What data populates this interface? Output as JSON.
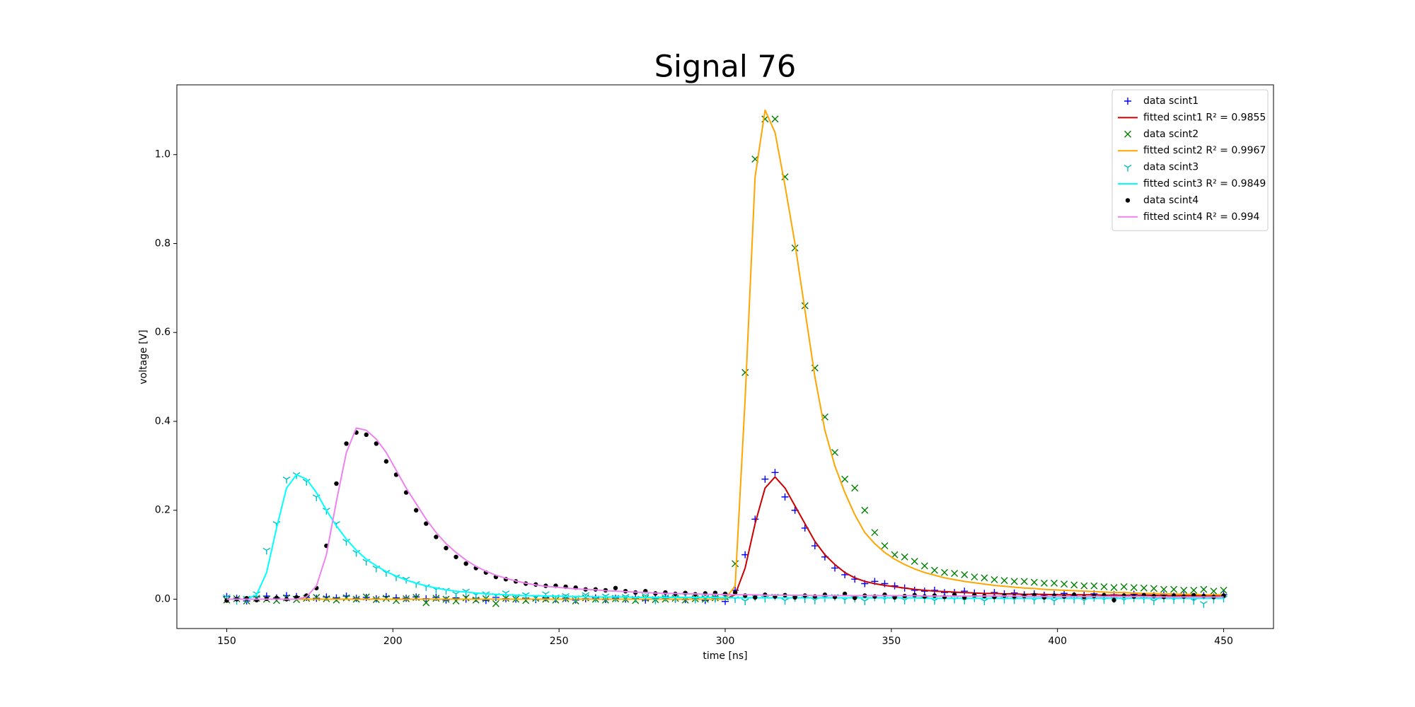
{
  "chart_data": {
    "type": "scatter",
    "title": "Signal 76",
    "x_label": "time [ns]",
    "y_label": "voltage [V]",
    "xlim": [
      135,
      465
    ],
    "ylim": [
      -0.066,
      1.157
    ],
    "xticks": [
      150,
      200,
      250,
      300,
      350,
      400,
      450
    ],
    "yticks": [
      {
        "value": 0,
        "label": "0.0"
      },
      0.2,
      0.4,
      0.6,
      0.8,
      {
        "value": 1,
        "label": "1.0"
      }
    ],
    "legend": "upper right",
    "x": [
      150,
      153,
      156,
      159,
      162,
      165,
      168,
      171,
      174,
      177,
      180,
      183,
      186,
      189,
      192,
      195,
      198,
      201,
      204,
      207,
      210,
      213,
      216,
      219,
      222,
      225,
      228,
      231,
      234,
      237,
      240,
      243,
      246,
      249,
      252,
      255,
      258,
      261,
      264,
      267,
      270,
      273,
      276,
      279,
      282,
      285,
      288,
      291,
      294,
      297,
      300,
      303,
      306,
      309,
      312,
      315,
      318,
      321,
      324,
      327,
      330,
      333,
      336,
      339,
      342,
      345,
      348,
      351,
      354,
      357,
      360,
      363,
      366,
      369,
      372,
      375,
      378,
      381,
      384,
      387,
      390,
      393,
      396,
      399,
      402,
      405,
      408,
      411,
      414,
      417,
      420,
      423,
      426,
      429,
      432,
      435,
      438,
      441,
      444,
      447,
      450
    ],
    "series": [
      {
        "name": "data scint1",
        "kind": "scatter",
        "marker": "plus",
        "color": "#0000ff",
        "values": [
          0.006,
          0.002,
          -0.004,
          0.005,
          0.007,
          0.003,
          0.008,
          0.006,
          0.004,
          0.002,
          0.005,
          0.003,
          0.007,
          0.002,
          0.004,
          0.001,
          0.006,
          0.003,
          0.002,
          0.005,
          0.001,
          0.004,
          -0.002,
          0.003,
          0.0,
          0.002,
          -0.003,
          0.004,
          0.001,
          0.0,
          0.002,
          -0.001,
          0.003,
          0.0,
          0.002,
          -0.002,
          0.001,
          0.003,
          -0.001,
          0.002,
          0.0,
          0.002,
          -0.002,
          0.001,
          0.003,
          0.0,
          -0.001,
          0.002,
          -0.003,
          0.001,
          -0.005,
          0.02,
          0.1,
          0.18,
          0.27,
          0.285,
          0.23,
          0.2,
          0.16,
          0.12,
          0.095,
          0.07,
          0.055,
          0.045,
          0.035,
          0.04,
          0.035,
          0.03,
          0.025,
          0.02,
          0.018,
          0.02,
          0.015,
          0.015,
          0.018,
          0.014,
          0.013,
          0.015,
          0.012,
          0.014,
          0.01,
          0.012,
          0.009,
          0.011,
          0.013,
          0.008,
          0.01,
          0.012,
          0.007,
          0.01,
          0.009,
          0.011,
          0.006,
          0.008,
          0.01,
          0.007,
          0.009,
          0.006,
          0.008,
          0.005,
          0.01
        ]
      },
      {
        "name": "fitted scint1 R² = 0.9855",
        "kind": "line",
        "color": "#cc0000",
        "values": [
          0,
          0,
          0,
          0,
          0,
          0,
          0,
          0,
          0,
          0,
          0,
          0,
          0,
          0,
          0,
          0,
          0,
          0,
          0,
          0,
          0,
          0,
          0,
          0,
          0,
          0,
          0,
          0,
          0,
          0,
          0,
          0,
          0,
          0,
          0,
          0,
          0,
          0,
          0,
          0,
          0,
          0,
          0,
          0,
          0,
          0,
          0,
          0,
          0,
          0,
          0,
          0.01,
          0.07,
          0.17,
          0.25,
          0.275,
          0.25,
          0.21,
          0.17,
          0.13,
          0.1,
          0.078,
          0.06,
          0.048,
          0.04,
          0.035,
          0.031,
          0.028,
          0.025,
          0.022,
          0.02,
          0.018,
          0.017,
          0.016,
          0.015,
          0.014,
          0.013,
          0.013,
          0.012,
          0.012,
          0.011,
          0.011,
          0.011,
          0.01,
          0.01,
          0.01,
          0.01,
          0.01,
          0.009,
          0.009,
          0.009,
          0.009,
          0.009,
          0.009,
          0.008,
          0.008,
          0.008,
          0.008,
          0.008,
          0.008,
          0.008
        ]
      },
      {
        "name": "data scint2",
        "kind": "scatter",
        "marker": "x",
        "color": "#008000",
        "values": [
          -0.002,
          0.001,
          -0.004,
          0.002,
          0.0,
          -0.003,
          0.003,
          -0.001,
          0.002,
          0.004,
          0.001,
          -0.002,
          0.003,
          0.0,
          0.005,
          -0.001,
          0.002,
          -0.003,
          0.001,
          0.004,
          -0.008,
          0.002,
          0.0,
          -0.004,
          0.003,
          -0.002,
          0.001,
          -0.01,
          0.002,
          0.0,
          -0.003,
          0.002,
          0.0,
          -0.002,
          0.001,
          -0.004,
          0.003,
          0.0,
          -0.002,
          0.001,
          0.0,
          -0.003,
          0.002,
          -0.001,
          0.0,
          0.002,
          -0.002,
          0.001,
          0.0,
          0.003,
          0.005,
          0.08,
          0.51,
          0.99,
          1.08,
          1.08,
          0.95,
          0.79,
          0.66,
          0.52,
          0.41,
          0.33,
          0.27,
          0.25,
          0.2,
          0.15,
          0.12,
          0.1,
          0.095,
          0.085,
          0.075,
          0.065,
          0.06,
          0.058,
          0.055,
          0.05,
          0.048,
          0.044,
          0.042,
          0.04,
          0.04,
          0.038,
          0.036,
          0.036,
          0.034,
          0.032,
          0.03,
          0.03,
          0.028,
          0.026,
          0.028,
          0.026,
          0.025,
          0.024,
          0.022,
          0.022,
          0.02,
          0.02,
          0.022,
          0.018,
          0.02
        ]
      },
      {
        "name": "fitted scint2 R² = 0.9967",
        "kind": "line",
        "color": "#ffa500",
        "values": [
          0,
          0,
          0,
          0,
          0,
          0,
          0,
          0,
          0,
          0,
          0,
          0,
          0,
          0,
          0,
          0,
          0,
          0,
          0,
          0,
          0,
          0,
          0,
          0,
          0,
          0,
          0,
          0,
          0,
          0,
          0,
          0,
          0,
          0,
          0,
          0,
          0,
          0,
          0,
          0,
          0,
          0,
          0,
          0,
          0,
          0,
          0,
          0,
          0,
          0,
          0,
          0.03,
          0.45,
          0.95,
          1.1,
          1.05,
          0.93,
          0.8,
          0.65,
          0.5,
          0.38,
          0.3,
          0.24,
          0.19,
          0.15,
          0.125,
          0.105,
          0.09,
          0.078,
          0.068,
          0.06,
          0.054,
          0.048,
          0.044,
          0.04,
          0.037,
          0.034,
          0.031,
          0.029,
          0.027,
          0.025,
          0.024,
          0.022,
          0.021,
          0.02,
          0.019,
          0.018,
          0.017,
          0.016,
          0.015,
          0.015,
          0.014,
          0.013,
          0.013,
          0.012,
          0.012,
          0.011,
          0.011,
          0.01,
          0.01,
          0.01
        ]
      },
      {
        "name": "data scint3",
        "kind": "scatter",
        "marker": "tri_down",
        "color": "#00bfbf",
        "values": [
          0.005,
          -0.003,
          0.002,
          0.012,
          0.11,
          0.17,
          0.27,
          0.28,
          0.265,
          0.23,
          0.2,
          0.17,
          0.13,
          0.105,
          0.085,
          0.07,
          0.06,
          0.05,
          0.045,
          0.035,
          0.028,
          0.022,
          0.02,
          0.012,
          0.018,
          0.01,
          0.012,
          0.008,
          0.014,
          0.006,
          0.01,
          0.004,
          0.012,
          0.005,
          0.008,
          0.003,
          0.01,
          0.002,
          0.007,
          0.004,
          0.006,
          0.002,
          0.008,
          -0.002,
          0.005,
          0.003,
          0.009,
          0.0,
          0.004,
          0.002,
          0.006,
          0.001,
          -0.004,
          0.005,
          0.002,
          0.007,
          -0.003,
          0.004,
          0.001,
          -0.002,
          0.003,
          0.006,
          -0.001,
          0.002,
          -0.004,
          0.005,
          0.0,
          0.003,
          -0.002,
          0.004,
          0.001,
          -0.003,
          0.004,
          0.0,
          -0.002,
          0.003,
          -0.004,
          0.002,
          0.0,
          -0.001,
          0.003,
          -0.002,
          0.001,
          -0.004,
          0.002,
          0.0,
          -0.003,
          0.004,
          -0.001,
          0.001,
          -0.002,
          0.003,
          0.0,
          -0.004,
          0.002,
          -0.001,
          0.001,
          -0.003,
          -0.01,
          0.0,
          0.002
        ]
      },
      {
        "name": "fitted scint3 R² = 0.9849",
        "kind": "line",
        "color": "#00ffff",
        "values": [
          0,
          0,
          0,
          0.01,
          0.06,
          0.16,
          0.25,
          0.28,
          0.27,
          0.24,
          0.2,
          0.165,
          0.135,
          0.11,
          0.09,
          0.075,
          0.062,
          0.052,
          0.043,
          0.036,
          0.03,
          0.025,
          0.021,
          0.018,
          0.016,
          0.014,
          0.012,
          0.011,
          0.01,
          0.009,
          0.008,
          0.008,
          0.007,
          0.007,
          0.006,
          0.006,
          0.006,
          0.005,
          0.005,
          0.005,
          0.005,
          0.004,
          0.004,
          0.004,
          0.004,
          0.004,
          0.004,
          0.004,
          0.004,
          0.004,
          0.003,
          0.003,
          0.003,
          0.003,
          0.003,
          0.003,
          0.003,
          0.003,
          0.003,
          0.003,
          0.003,
          0.003,
          0.003,
          0.003,
          0.003,
          0.003,
          0.003,
          0.003,
          0.003,
          0.003,
          0.002,
          0.002,
          0.002,
          0.002,
          0.002,
          0.002,
          0.002,
          0.002,
          0.002,
          0.002,
          0.002,
          0.002,
          0.002,
          0.002,
          0.002,
          0.002,
          0.002,
          0.002,
          0.002,
          0.002,
          0.002,
          0.002,
          0.002,
          0.002,
          0.002,
          0.002,
          0.002,
          0.002,
          0.002,
          0.002,
          0.002
        ]
      },
      {
        "name": "data scint4",
        "kind": "scatter",
        "marker": "dot",
        "color": "#000000",
        "values": [
          -0.003,
          0.0,
          0.002,
          -0.002,
          0.001,
          0.003,
          0.0,
          0.004,
          0.008,
          0.025,
          0.12,
          0.26,
          0.35,
          0.375,
          0.37,
          0.35,
          0.31,
          0.28,
          0.24,
          0.2,
          0.17,
          0.14,
          0.115,
          0.095,
          0.08,
          0.07,
          0.06,
          0.05,
          0.045,
          0.04,
          0.035,
          0.033,
          0.03,
          0.03,
          0.028,
          0.026,
          0.022,
          0.022,
          0.02,
          0.025,
          0.018,
          0.015,
          0.018,
          0.013,
          0.015,
          0.012,
          0.014,
          0.011,
          0.013,
          0.014,
          0.012,
          0.015,
          0.008,
          0.004,
          0.01,
          0.006,
          0.009,
          0.004,
          0.008,
          0.006,
          0.01,
          0.005,
          0.012,
          0.003,
          0.008,
          0.006,
          0.01,
          0.004,
          0.007,
          0.009,
          0.006,
          0.008,
          0.005,
          0.01,
          0.004,
          0.009,
          0.007,
          0.005,
          0.008,
          0.006,
          0.007,
          0.009,
          0.004,
          0.008,
          0.006,
          0.01,
          0.005,
          0.007,
          0.009,
          -0.002,
          0.008,
          0.006,
          0.009,
          0.007,
          0.005,
          0.008,
          0.006,
          0.009,
          0.007,
          0.005,
          0.008
        ]
      },
      {
        "name": "fitted scint4 R² = 0.994",
        "kind": "line",
        "color": "#ee82ee",
        "values": [
          0,
          0,
          0,
          0,
          0,
          0,
          0,
          0,
          0.005,
          0.03,
          0.1,
          0.22,
          0.33,
          0.385,
          0.38,
          0.36,
          0.33,
          0.29,
          0.25,
          0.215,
          0.18,
          0.15,
          0.125,
          0.105,
          0.088,
          0.074,
          0.063,
          0.054,
          0.047,
          0.041,
          0.036,
          0.032,
          0.029,
          0.027,
          0.025,
          0.023,
          0.022,
          0.021,
          0.019,
          0.018,
          0.017,
          0.016,
          0.015,
          0.014,
          0.013,
          0.013,
          0.012,
          0.012,
          0.011,
          0.011,
          0.01,
          0.01,
          0.01,
          0.01,
          0.009,
          0.009,
          0.009,
          0.009,
          0.009,
          0.008,
          0.008,
          0.008,
          0.008,
          0.008,
          0.008,
          0.008,
          0.008,
          0.008,
          0.008,
          0.008,
          0.007,
          0.007,
          0.007,
          0.007,
          0.007,
          0.007,
          0.007,
          0.007,
          0.007,
          0.007,
          0.006,
          0.006,
          0.006,
          0.006,
          0.006,
          0.006,
          0.006,
          0.006,
          0.006,
          0.006,
          0.006,
          0.006,
          0.006,
          0.005,
          0.005,
          0.005,
          0.005,
          0.005,
          0.005,
          0.005,
          0.005
        ]
      }
    ]
  }
}
